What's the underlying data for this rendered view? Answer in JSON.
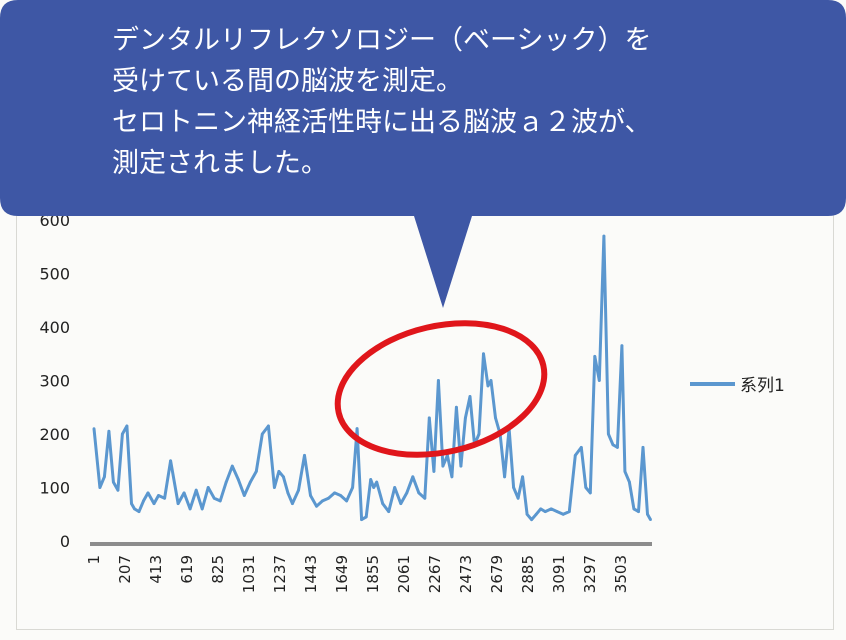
{
  "callout": {
    "lines": [
      "デンタルリフレクソロジー（ベーシック）を",
      "受けている間の脳波を測定。",
      "セロトニン神経活性時に出る脳波ａ２波が、",
      "測定されました。"
    ]
  },
  "colors": {
    "callout_fill": "#3e57a5",
    "series_line": "#5b97cf",
    "highlight_ellipse": "#e0161b",
    "axis": "#8c8c8c"
  },
  "chart_data": {
    "type": "line",
    "ylim": [
      0,
      600
    ],
    "y_ticks": [
      "0",
      "100",
      "200",
      "300",
      "400",
      "500",
      "600"
    ],
    "x_tick_labels": [
      "1",
      "207",
      "413",
      "619",
      "825",
      "1031",
      "1237",
      "1443",
      "1649",
      "1855",
      "2061",
      "2267",
      "2473",
      "2679",
      "2885",
      "3091",
      "3297",
      "3503"
    ],
    "xlim": [
      1,
      3710
    ],
    "grid": false,
    "legend_placement": "right",
    "highlight": "ellipse around 2000–2750",
    "series": [
      {
        "name": "系列1",
        "x": [
          1,
          40,
          70,
          100,
          130,
          160,
          190,
          220,
          250,
          270,
          300,
          330,
          360,
          400,
          430,
          470,
          510,
          560,
          600,
          640,
          680,
          720,
          760,
          800,
          840,
          880,
          920,
          960,
          1000,
          1040,
          1080,
          1120,
          1160,
          1200,
          1230,
          1260,
          1290,
          1320,
          1360,
          1400,
          1440,
          1480,
          1520,
          1560,
          1600,
          1640,
          1680,
          1720,
          1750,
          1780,
          1810,
          1840,
          1860,
          1880,
          1920,
          1960,
          2000,
          2040,
          2080,
          2120,
          2160,
          2200,
          2230,
          2260,
          2290,
          2320,
          2350,
          2380,
          2410,
          2440,
          2470,
          2500,
          2530,
          2560,
          2590,
          2620,
          2640,
          2670,
          2700,
          2730,
          2760,
          2790,
          2820,
          2850,
          2880,
          2910,
          2940,
          2970,
          3000,
          3040,
          3080,
          3120,
          3160,
          3200,
          3240,
          3270,
          3300,
          3330,
          3360,
          3390,
          3420,
          3450,
          3480,
          3510,
          3530,
          3560,
          3590,
          3620,
          3650,
          3680,
          3700
        ],
        "values": [
          210,
          100,
          120,
          205,
          110,
          95,
          200,
          215,
          70,
          60,
          55,
          75,
          90,
          70,
          85,
          80,
          150,
          70,
          90,
          60,
          95,
          60,
          100,
          80,
          75,
          110,
          140,
          115,
          85,
          110,
          130,
          200,
          215,
          100,
          130,
          120,
          90,
          70,
          95,
          160,
          85,
          65,
          75,
          80,
          90,
          85,
          75,
          100,
          210,
          40,
          45,
          115,
          100,
          110,
          70,
          55,
          100,
          70,
          90,
          120,
          90,
          80,
          230,
          130,
          300,
          140,
          160,
          120,
          250,
          140,
          230,
          270,
          180,
          200,
          350,
          290,
          300,
          230,
          200,
          120,
          210,
          100,
          80,
          120,
          50,
          40,
          50,
          60,
          55,
          60,
          55,
          50,
          55,
          160,
          175,
          100,
          90,
          345,
          300,
          570,
          200,
          180,
          175,
          365,
          130,
          110,
          60,
          55,
          175,
          50,
          40
        ]
      }
    ]
  }
}
